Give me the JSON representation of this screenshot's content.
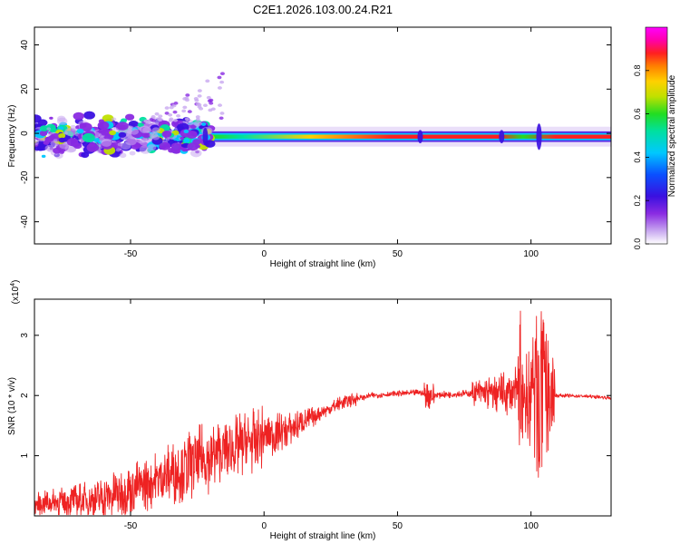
{
  "title": "C2E1.2026.103.00.24.R21",
  "colors": {
    "snr_line": "#ee2222",
    "colormap": [
      "#ffffff",
      "#c8a8f0",
      "#8a2be2",
      "#3a10e0",
      "#0a50ff",
      "#00c8ff",
      "#00e0a0",
      "#22dd22",
      "#c0e000",
      "#ffd000",
      "#ff8000",
      "#ff2020",
      "#ff00aa",
      "#ff00ff"
    ]
  },
  "chart_data": [
    {
      "type": "heatmap",
      "title": "C2E1.2026.103.00.24.R21",
      "xlabel": "Height of straight line (km)",
      "ylabel": "Frequency (Hz)",
      "xlim": [
        -86,
        130
      ],
      "ylim": [
        -50,
        48
      ],
      "xticks": [
        -50,
        0,
        50,
        100
      ],
      "yticks": [
        -40,
        -20,
        0,
        20,
        40
      ],
      "xticklabels": [
        "-50",
        "0",
        "50",
        "100"
      ],
      "yticklabels": [
        "-40",
        "-20",
        "0",
        "20",
        "40"
      ],
      "colorbar": {
        "label": "Normalized spectral amplitude",
        "range": [
          0,
          1
        ],
        "ticks": [
          "0.0",
          "0.2",
          "0.4",
          "0.6",
          "0.8"
        ]
      },
      "description_values": {
        "band_center_hz": -1.5,
        "noisy_region_x": [
          -86,
          -22
        ],
        "peak_amplitude_region_x": [
          40,
          130
        ]
      }
    },
    {
      "type": "line",
      "xlabel": "Height of straight line (km)",
      "ylabel": "SNR (10 * v/v)",
      "y_multiplier_label": "(x10",
      "y_multiplier_exp": "4",
      "y_multiplier_close": ")",
      "xlim": [
        -86,
        130
      ],
      "ylim": [
        0,
        3.6
      ],
      "xticks": [
        -50,
        0,
        50,
        100
      ],
      "yticks": [
        1,
        2,
        3
      ],
      "xticklabels": [
        "-50",
        "0",
        "50",
        "100"
      ],
      "yticklabels": [
        "1",
        "2",
        "3"
      ],
      "series": [
        {
          "envelope_x": [
            -86,
            -70,
            -60,
            -50,
            -40,
            -30,
            -20,
            -10,
            0,
            10,
            20,
            30,
            40,
            50,
            58,
            62,
            70,
            80,
            90,
            97,
            100,
            103,
            106,
            110,
            120,
            130
          ],
          "envelope_y": [
            0.2,
            0.25,
            0.3,
            0.45,
            0.6,
            0.8,
            1.0,
            1.15,
            1.3,
            1.45,
            1.68,
            1.9,
            2.0,
            2.03,
            2.05,
            2.0,
            2.02,
            2.04,
            2.03,
            2.05,
            2.0,
            2.0,
            2.0,
            2.0,
            1.99,
            1.96
          ]
        }
      ]
    }
  ]
}
